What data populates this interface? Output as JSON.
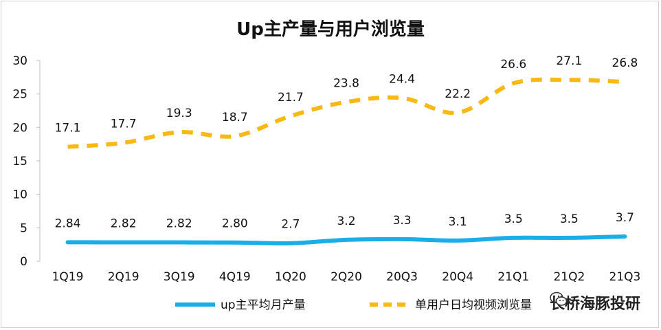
{
  "title": "Up主产量与用户浏览量",
  "watermark": "长桥海豚投研",
  "colors": {
    "series1": "#1aaee8",
    "series2": "#f8b914"
  },
  "chart_data": {
    "type": "line",
    "title": "Up主产量与用户浏览量",
    "categories": [
      "1Q19",
      "2Q19",
      "3Q19",
      "4Q19",
      "1Q20",
      "2Q20",
      "20Q3",
      "20Q4",
      "21Q1",
      "21Q2",
      "21Q3"
    ],
    "yticks": [
      0,
      5,
      10,
      15,
      20,
      25,
      30
    ],
    "ylim": [
      0,
      30
    ],
    "grid": false,
    "legend": "bottom",
    "series": [
      {
        "name": "up主平均月产量",
        "style": "solid",
        "values": [
          2.84,
          2.82,
          2.82,
          2.8,
          2.7,
          3.2,
          3.3,
          3.1,
          3.5,
          3.5,
          3.7
        ],
        "labels": [
          "2.84",
          "2.82",
          "2.82",
          "2.80",
          "2.7",
          "3.2",
          "3.3",
          "3.1",
          "3.5",
          "3.5",
          "3.7"
        ]
      },
      {
        "name": "单用户日均视频浏览量",
        "style": "dashed",
        "values": [
          17.1,
          17.7,
          19.3,
          18.7,
          21.7,
          23.8,
          24.4,
          22.2,
          26.6,
          27.1,
          26.8
        ],
        "labels": [
          "17.1",
          "17.7",
          "19.3",
          "18.7",
          "21.7",
          "23.8",
          "24.4",
          "22.2",
          "26.6",
          "27.1",
          "26.8"
        ]
      }
    ]
  }
}
